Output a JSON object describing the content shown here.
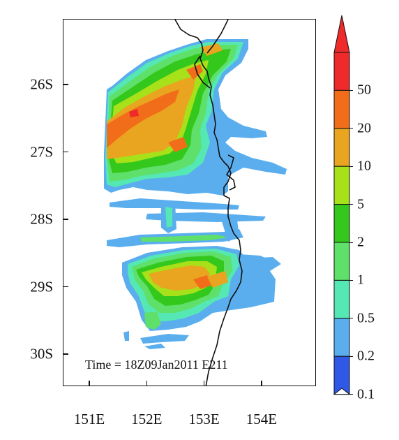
{
  "map": {
    "lat_labels": [
      "26S",
      "27S",
      "28S",
      "29S",
      "30S"
    ],
    "lat_values": [
      26,
      27,
      28,
      29,
      30
    ],
    "lon_labels": [
      "151E",
      "152E",
      "153E",
      "154E"
    ],
    "lon_values": [
      151,
      152,
      153,
      154
    ],
    "run_label": "Time = 18Z09Jan2011 E211"
  },
  "legend": {
    "labels": [
      "50",
      "20",
      "10",
      "5",
      "2",
      "1",
      "0.5",
      "0.2",
      "0.1"
    ],
    "colors": [
      "#ee2a2a",
      "#f26d1a",
      "#e9a51f",
      "#a7e11a",
      "#35c81c",
      "#5fe06a",
      "#55e8b4",
      "#5aaeee",
      "#2f58e6"
    ],
    "under_color": "#ffffff",
    "over_color": "#ee2a2a"
  }
}
